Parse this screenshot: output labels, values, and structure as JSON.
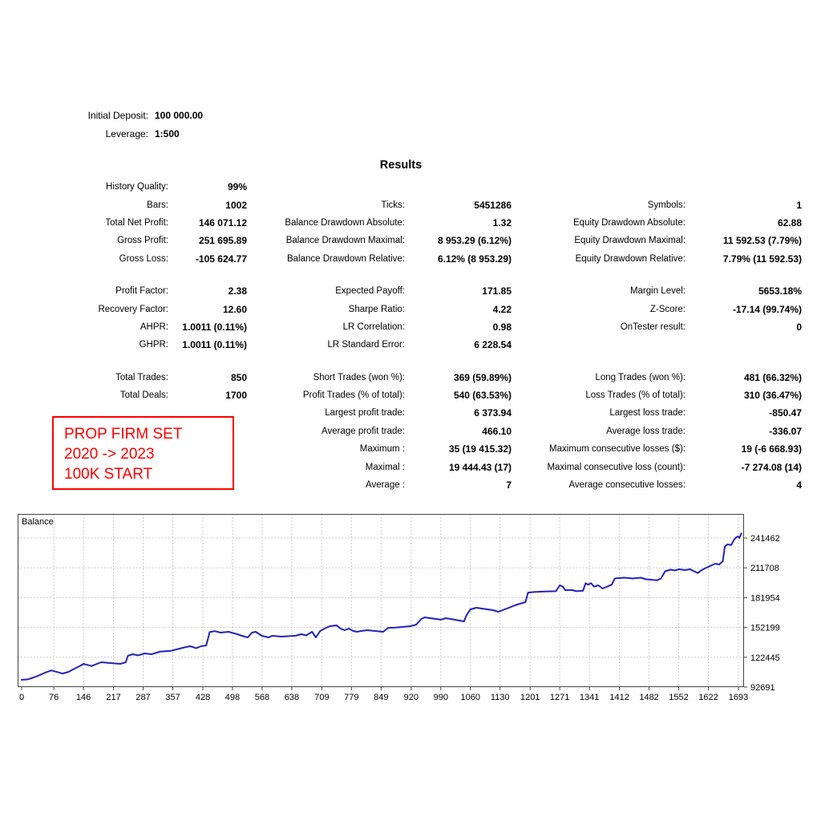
{
  "header": {
    "initial_deposit_label": "Initial Deposit:",
    "initial_deposit_value": "100 000.00",
    "leverage_label": "Leverage:",
    "leverage_value": "1:500",
    "results_title": "Results"
  },
  "stats": {
    "rows": [
      [
        [
          "History Quality:",
          "99%"
        ],
        [
          "",
          ""
        ],
        [
          "",
          ""
        ]
      ],
      [
        [
          "Bars:",
          "1002"
        ],
        [
          "Ticks:",
          "5451286"
        ],
        [
          "Symbols:",
          "1"
        ]
      ],
      [
        [
          "Total Net Profit:",
          "146 071.12"
        ],
        [
          "Balance Drawdown Absolute:",
          "1.32"
        ],
        [
          "Equity Drawdown Absolute:",
          "62.88"
        ]
      ],
      [
        [
          "Gross Profit:",
          "251 695.89"
        ],
        [
          "Balance Drawdown Maximal:",
          "8 953.29 (6.12%)"
        ],
        [
          "Equity Drawdown Maximal:",
          "11 592.53 (7.79%)"
        ]
      ],
      [
        [
          "Gross Loss:",
          "-105 624.77"
        ],
        [
          "Balance Drawdown Relative:",
          "6.12% (8 953.29)"
        ],
        [
          "Equity Drawdown Relative:",
          "7.79% (11 592.53)"
        ]
      ],
      null,
      [
        [
          "Profit Factor:",
          "2.38"
        ],
        [
          "Expected Payoff:",
          "171.85"
        ],
        [
          "Margin Level:",
          "5653.18%"
        ]
      ],
      [
        [
          "Recovery Factor:",
          "12.60"
        ],
        [
          "Sharpe Ratio:",
          "4.22"
        ],
        [
          "Z-Score:",
          "-17.14 (99.74%)"
        ]
      ],
      [
        [
          "AHPR:",
          "1.0011 (0.11%)"
        ],
        [
          "LR Correlation:",
          "0.98"
        ],
        [
          "OnTester result:",
          "0"
        ]
      ],
      [
        [
          "GHPR:",
          "1.0011 (0.11%)"
        ],
        [
          "LR Standard Error:",
          "6 228.54"
        ],
        [
          "",
          ""
        ]
      ],
      null,
      [
        [
          "Total Trades:",
          "850"
        ],
        [
          "Short Trades (won %):",
          "369 (59.89%)"
        ],
        [
          "Long Trades (won %):",
          "481 (66.32%)"
        ]
      ],
      [
        [
          "Total Deals:",
          "1700"
        ],
        [
          "Profit Trades (% of total):",
          "540 (63.53%)"
        ],
        [
          "Loss Trades (% of total):",
          "310 (36.47%)"
        ]
      ],
      [
        [
          "",
          ""
        ],
        [
          "Largest profit trade:",
          "6 373.94"
        ],
        [
          "Largest loss trade:",
          "-850.47"
        ]
      ],
      [
        [
          "",
          ""
        ],
        [
          "Average profit trade:",
          "466.10"
        ],
        [
          "Average loss trade:",
          "-336.07"
        ]
      ],
      [
        [
          "",
          ""
        ],
        [
          "Maximum :",
          "35 (19 415.32)"
        ],
        [
          "Maximum consecutive losses ($):",
          "19 (-6 668.93)"
        ]
      ],
      [
        [
          "",
          ""
        ],
        [
          "Maximal :",
          "19 444.43 (17)"
        ],
        [
          "Maximal consecutive loss (count):",
          "-7 274.08 (14)"
        ]
      ],
      [
        [
          "",
          ""
        ],
        [
          "Average :",
          "7"
        ],
        [
          "Average consecutive losses:",
          "4"
        ]
      ]
    ]
  },
  "annotation": {
    "lines": [
      "PROP FIRM SET",
      "2020 -> 2023",
      "100K START"
    ],
    "color": "#ff0000"
  },
  "chart_data": {
    "type": "line",
    "title": "",
    "legend": [
      "Balance"
    ],
    "legend_position": "top-left",
    "grid": true,
    "line_color": "#2222bb",
    "grid_color": "#cccccc",
    "border_color": "#444444",
    "x_ticks": [
      0,
      76,
      146,
      217,
      287,
      357,
      428,
      498,
      568,
      638,
      709,
      779,
      849,
      920,
      990,
      1060,
      1130,
      1201,
      1271,
      1341,
      1412,
      1482,
      1552,
      1622,
      1693
    ],
    "y_ticks": [
      241462,
      211708,
      181954,
      152199,
      122445,
      92691
    ],
    "xlabel": "",
    "ylabel": "",
    "xlim": [
      0,
      1700
    ],
    "ylim": [
      92691,
      265500
    ],
    "series": [
      {
        "name": "Balance",
        "points": [
          [
            0,
            100000
          ],
          [
            14,
            100400
          ],
          [
            28,
            102300
          ],
          [
            42,
            104500
          ],
          [
            55,
            107000
          ],
          [
            70,
            109300
          ],
          [
            84,
            107700
          ],
          [
            96,
            106200
          ],
          [
            110,
            107800
          ],
          [
            126,
            111300
          ],
          [
            140,
            114300
          ],
          [
            146,
            115900
          ],
          [
            165,
            113700
          ],
          [
            188,
            117500
          ],
          [
            204,
            116900
          ],
          [
            233,
            115900
          ],
          [
            246,
            117500
          ],
          [
            251,
            123900
          ],
          [
            262,
            125500
          ],
          [
            275,
            124400
          ],
          [
            291,
            126300
          ],
          [
            307,
            125500
          ],
          [
            327,
            128100
          ],
          [
            353,
            128900
          ],
          [
            385,
            132400
          ],
          [
            398,
            133500
          ],
          [
            412,
            131600
          ],
          [
            424,
            133500
          ],
          [
            436,
            134200
          ],
          [
            444,
            147600
          ],
          [
            456,
            148500
          ],
          [
            470,
            147100
          ],
          [
            489,
            147900
          ],
          [
            509,
            145500
          ],
          [
            520,
            143900
          ],
          [
            534,
            142300
          ],
          [
            544,
            147100
          ],
          [
            553,
            147900
          ],
          [
            567,
            143900
          ],
          [
            583,
            142300
          ],
          [
            592,
            143900
          ],
          [
            614,
            143100
          ],
          [
            647,
            144000
          ],
          [
            660,
            145500
          ],
          [
            672,
            144300
          ],
          [
            686,
            147900
          ],
          [
            695,
            142300
          ],
          [
            705,
            148700
          ],
          [
            719,
            151900
          ],
          [
            728,
            153500
          ],
          [
            744,
            154300
          ],
          [
            753,
            151100
          ],
          [
            763,
            149500
          ],
          [
            773,
            151100
          ],
          [
            783,
            148700
          ],
          [
            792,
            147900
          ],
          [
            802,
            148700
          ],
          [
            816,
            149500
          ],
          [
            854,
            147900
          ],
          [
            866,
            151900
          ],
          [
            880,
            152000
          ],
          [
            918,
            153500
          ],
          [
            932,
            155000
          ],
          [
            944,
            160700
          ],
          [
            952,
            162300
          ],
          [
            990,
            160000
          ],
          [
            1002,
            161500
          ],
          [
            1045,
            158300
          ],
          [
            1050,
            163900
          ],
          [
            1060,
            170300
          ],
          [
            1074,
            171900
          ],
          [
            1113,
            169500
          ],
          [
            1126,
            167900
          ],
          [
            1151,
            171900
          ],
          [
            1165,
            174300
          ],
          [
            1177,
            175900
          ],
          [
            1190,
            177500
          ],
          [
            1196,
            187000
          ],
          [
            1210,
            187600
          ],
          [
            1236,
            188100
          ],
          [
            1262,
            188400
          ],
          [
            1271,
            194300
          ],
          [
            1278,
            192900
          ],
          [
            1284,
            189500
          ],
          [
            1300,
            189500
          ],
          [
            1310,
            188400
          ],
          [
            1326,
            188900
          ],
          [
            1332,
            196400
          ],
          [
            1338,
            194900
          ],
          [
            1345,
            196400
          ],
          [
            1352,
            192900
          ],
          [
            1362,
            194300
          ],
          [
            1372,
            191100
          ],
          [
            1394,
            194900
          ],
          [
            1401,
            201100
          ],
          [
            1423,
            201900
          ],
          [
            1443,
            201100
          ],
          [
            1462,
            201900
          ],
          [
            1475,
            200300
          ],
          [
            1501,
            199300
          ],
          [
            1510,
            201100
          ],
          [
            1520,
            208300
          ],
          [
            1533,
            209900
          ],
          [
            1543,
            209100
          ],
          [
            1553,
            210300
          ],
          [
            1566,
            209500
          ],
          [
            1579,
            210300
          ],
          [
            1588,
            208300
          ],
          [
            1597,
            206500
          ],
          [
            1605,
            209100
          ],
          [
            1613,
            211000
          ],
          [
            1626,
            213500
          ],
          [
            1638,
            215800
          ],
          [
            1648,
            215100
          ],
          [
            1656,
            218300
          ],
          [
            1661,
            233000
          ],
          [
            1667,
            235100
          ],
          [
            1676,
            234500
          ],
          [
            1683,
            239900
          ],
          [
            1688,
            242300
          ],
          [
            1692,
            243100
          ],
          [
            1695,
            241600
          ],
          [
            1700,
            246071
          ]
        ]
      }
    ]
  }
}
